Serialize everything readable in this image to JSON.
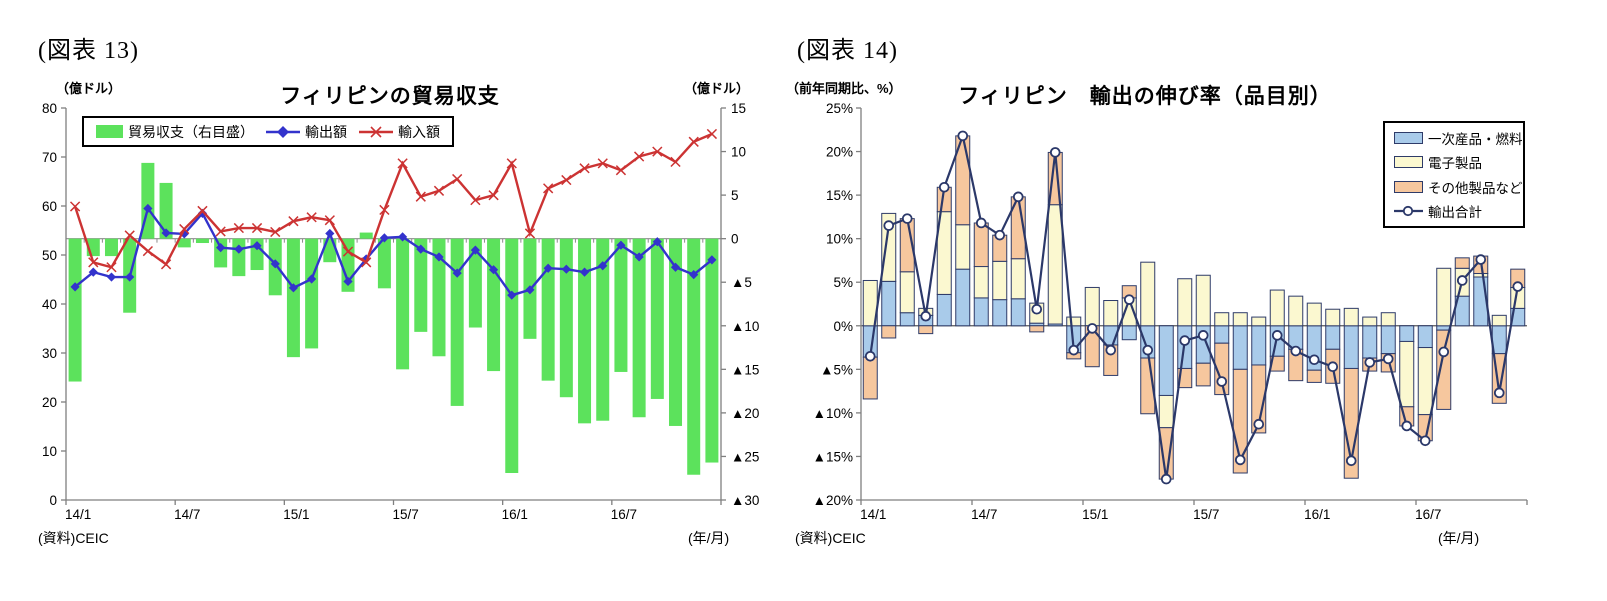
{
  "negative_prefix": "▲",
  "chart_data": [
    {
      "type": "combo-bar-line",
      "figure_label": "(図表 13)",
      "title": "フィリピンの貿易収支",
      "unit_left": "（億ドル）",
      "unit_right": "（億ドル）",
      "source": "(資料)CEIC",
      "xaxis_unit": "(年/月)",
      "categories": [
        "14/1",
        "14/2",
        "14/3",
        "14/4",
        "14/5",
        "14/6",
        "14/7",
        "14/8",
        "14/9",
        "14/10",
        "14/11",
        "14/12",
        "15/1",
        "15/2",
        "15/3",
        "15/4",
        "15/5",
        "15/6",
        "15/7",
        "15/8",
        "15/9",
        "15/10",
        "15/11",
        "15/12",
        "16/1",
        "16/2",
        "16/3",
        "16/4",
        "16/5",
        "16/6",
        "16/7",
        "16/8",
        "16/9",
        "16/10",
        "16/11",
        "16/12"
      ],
      "x_tick_labels": [
        "14/1",
        "14/7",
        "15/1",
        "15/7",
        "16/1",
        "16/7"
      ],
      "left_axis": {
        "min": 0,
        "max": 80,
        "step": 10
      },
      "right_axis": {
        "min": -30,
        "max": 15,
        "step": 5
      },
      "grid": "zero-line-only",
      "legend_position": "top-inside",
      "series": [
        {
          "name": "貿易収支（右目盛）",
          "type": "bar",
          "axis": "right",
          "color": "#5CE25C",
          "values": [
            -16.4,
            -2.0,
            -2.0,
            -8.5,
            8.7,
            6.4,
            -1.0,
            -0.5,
            -3.3,
            -4.3,
            -3.6,
            -6.5,
            -13.6,
            -12.6,
            -2.7,
            -6.1,
            0.7,
            -5.7,
            -15.0,
            -10.7,
            -13.5,
            -19.2,
            -10.2,
            -15.2,
            -26.9,
            -11.5,
            -16.3,
            -18.2,
            -21.2,
            -20.9,
            -15.3,
            -20.5,
            -18.4,
            -21.5,
            -27.1,
            -25.7
          ]
        },
        {
          "name": "輸出額",
          "type": "line",
          "axis": "left",
          "marker": "diamond",
          "color": "#3333CC",
          "values": [
            43.5,
            46.5,
            45.5,
            45.5,
            59.5,
            54.5,
            54.3,
            58.5,
            51.5,
            51.2,
            51.9,
            48.2,
            43.3,
            45.1,
            54.4,
            44.6,
            49.2,
            53.5,
            53.7,
            51.2,
            49.6,
            46.3,
            51.0,
            47.0,
            41.8,
            42.9,
            47.3,
            47.1,
            46.5,
            47.8,
            52.0,
            49.6,
            52.7,
            47.5,
            46.0,
            49.0
          ]
        },
        {
          "name": "輸入額",
          "type": "line",
          "axis": "left",
          "marker": "x",
          "color": "#CC3333",
          "values": [
            59.9,
            48.5,
            47.5,
            54.0,
            50.8,
            48.1,
            55.3,
            59.0,
            54.8,
            55.5,
            55.5,
            54.7,
            56.9,
            57.7,
            57.1,
            50.7,
            48.5,
            59.2,
            68.7,
            61.9,
            63.1,
            65.5,
            61.2,
            62.2,
            68.7,
            54.4,
            63.6,
            65.3,
            67.7,
            68.7,
            67.3,
            70.1,
            71.1,
            69.0,
            73.1,
            74.7
          ]
        }
      ]
    },
    {
      "type": "stacked-bar-line",
      "figure_label": "(図表 14)",
      "title": "フィリピン　輸出の伸び率（品目別）",
      "unit_left": "（前年同期比、%）",
      "source": "(資料)CEIC",
      "xaxis_unit": "(年/月)",
      "categories": [
        "14/1",
        "14/2",
        "14/3",
        "14/4",
        "14/5",
        "14/6",
        "14/7",
        "14/8",
        "14/9",
        "14/10",
        "14/11",
        "14/12",
        "15/1",
        "15/2",
        "15/3",
        "15/4",
        "15/5",
        "15/6",
        "15/7",
        "15/8",
        "15/9",
        "15/10",
        "15/11",
        "15/12",
        "16/1",
        "16/2",
        "16/3",
        "16/4",
        "16/5",
        "16/6",
        "16/7",
        "16/8",
        "16/9",
        "16/10",
        "16/11",
        "16/12"
      ],
      "x_tick_labels": [
        "14/1",
        "14/7",
        "15/1",
        "15/7",
        "16/1",
        "16/7"
      ],
      "axis": {
        "min": -20,
        "max": 25,
        "step": 5,
        "percent": true
      },
      "grid": "zero-line-only",
      "legend_position": "top-right-inside",
      "bar_stroke": "#2E3B69",
      "series": [
        {
          "name": "一次産品・燃料",
          "type": "stack-bar",
          "color": "#A9CBEA",
          "values": [
            -3.6,
            5.1,
            1.5,
            1.2,
            3.6,
            6.5,
            3.2,
            3.0,
            3.1,
            0.3,
            0.2,
            -3.1,
            0.0,
            -2.2,
            -1.6,
            -3.7,
            -8.0,
            -4.9,
            -4.3,
            -2.0,
            -5.0,
            -4.5,
            -3.5,
            -2.7,
            -5.1,
            -2.7,
            -4.9,
            -3.7,
            -3.2,
            -1.8,
            -2.5,
            -0.5,
            3.4,
            5.6,
            -3.2,
            2.0
          ]
        },
        {
          "name": "電子製品",
          "type": "stack-bar",
          "color": "#FBF8D0",
          "values": [
            5.2,
            7.8,
            4.7,
            0.8,
            9.5,
            5.1,
            3.6,
            4.4,
            4.6,
            2.3,
            13.7,
            1.0,
            4.4,
            2.9,
            3.2,
            7.3,
            -3.7,
            5.4,
            5.8,
            1.5,
            1.5,
            1.0,
            4.1,
            3.4,
            2.6,
            1.9,
            2.0,
            1.0,
            1.5,
            -7.5,
            -7.7,
            6.6,
            3.2,
            0.4,
            1.2,
            2.4
          ]
        },
        {
          "name": "その他製品など",
          "type": "stack-bar",
          "color": "#F6C79E",
          "values": [
            -4.8,
            -1.4,
            6.1,
            -0.9,
            2.8,
            10.2,
            5.0,
            3.0,
            7.1,
            -0.7,
            6.0,
            -0.7,
            -4.7,
            -3.5,
            1.4,
            -6.4,
            -5.9,
            -2.2,
            -2.6,
            -5.9,
            -11.9,
            -7.8,
            -1.7,
            -3.6,
            -1.4,
            -3.9,
            -12.6,
            -1.5,
            -2.1,
            -2.2,
            -3.0,
            -9.1,
            1.2,
            2.0,
            -5.7,
            2.1
          ]
        },
        {
          "name": "輸出合計",
          "type": "line",
          "marker": "circle",
          "color": "#2B3869",
          "values": [
            -3.5,
            11.5,
            12.3,
            1.1,
            15.9,
            21.8,
            11.8,
            10.4,
            14.8,
            1.9,
            19.9,
            -2.8,
            -0.3,
            -2.8,
            3.0,
            -2.8,
            -17.6,
            -1.7,
            -1.1,
            -6.4,
            -15.4,
            -11.3,
            -1.1,
            -2.9,
            -3.9,
            -4.7,
            -15.5,
            -4.2,
            -3.8,
            -11.5,
            -13.2,
            -3.0,
            5.2,
            7.6,
            -7.7,
            4.5
          ]
        }
      ]
    }
  ]
}
